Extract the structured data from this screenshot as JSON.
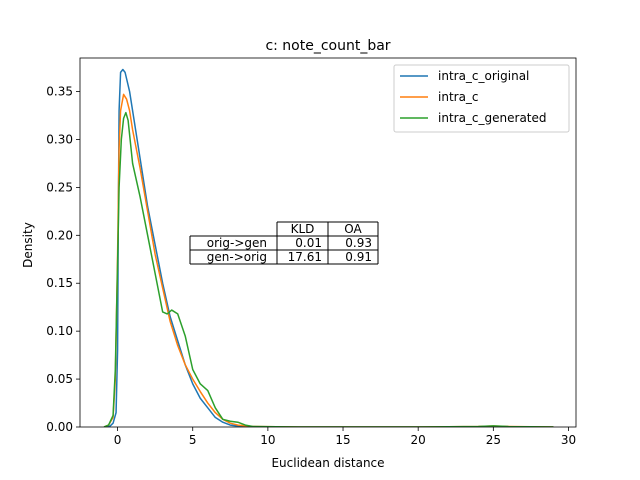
{
  "chart_data": {
    "type": "line",
    "title": "c: note_count_bar",
    "xlabel": "Euclidean distance",
    "ylabel": "Density",
    "xlim": [
      -2.5,
      30.5
    ],
    "ylim": [
      0.0,
      0.385
    ],
    "xticks": [
      0,
      5,
      10,
      15,
      20,
      25,
      30
    ],
    "xtick_labels": [
      "0",
      "5",
      "10",
      "15",
      "20",
      "25",
      "30"
    ],
    "yticks": [
      0.0,
      0.05,
      0.1,
      0.15,
      0.2,
      0.25,
      0.3,
      0.35
    ],
    "ytick_labels": [
      "0.00",
      "0.05",
      "0.10",
      "0.15",
      "0.20",
      "0.25",
      "0.30",
      "0.35"
    ],
    "grid": false,
    "legend_position": "top-right",
    "series": [
      {
        "name": "intra_c_original",
        "color": "#1f77b4",
        "points": [
          [
            -0.8,
            0
          ],
          [
            -0.5,
            0.001
          ],
          [
            -0.3,
            0.004
          ],
          [
            -0.1,
            0.015
          ],
          [
            0.0,
            0.08
          ],
          [
            0.05,
            0.22
          ],
          [
            0.1,
            0.33
          ],
          [
            0.2,
            0.37
          ],
          [
            0.35,
            0.373
          ],
          [
            0.5,
            0.37
          ],
          [
            0.8,
            0.35
          ],
          [
            1.0,
            0.33
          ],
          [
            1.5,
            0.28
          ],
          [
            2.0,
            0.23
          ],
          [
            2.5,
            0.19
          ],
          [
            3.0,
            0.15
          ],
          [
            3.5,
            0.115
          ],
          [
            4.0,
            0.09
          ],
          [
            4.5,
            0.065
          ],
          [
            5.0,
            0.045
          ],
          [
            5.5,
            0.03
          ],
          [
            6.0,
            0.02
          ],
          [
            6.5,
            0.01
          ],
          [
            7.0,
            0.005
          ],
          [
            7.5,
            0.002
          ],
          [
            8.0,
            0.001
          ],
          [
            9.0,
            0.0003
          ],
          [
            12.0,
            0.0
          ],
          [
            20.0,
            0.0
          ],
          [
            29.0,
            0.0
          ]
        ]
      },
      {
        "name": "intra_c",
        "color": "#ff7f0e",
        "points": [
          [
            -0.9,
            0
          ],
          [
            -0.6,
            0.002
          ],
          [
            -0.3,
            0.01
          ],
          [
            -0.15,
            0.05
          ],
          [
            0.0,
            0.18
          ],
          [
            0.1,
            0.29
          ],
          [
            0.2,
            0.33
          ],
          [
            0.4,
            0.347
          ],
          [
            0.6,
            0.342
          ],
          [
            0.8,
            0.33
          ],
          [
            1.0,
            0.31
          ],
          [
            1.5,
            0.27
          ],
          [
            2.0,
            0.225
          ],
          [
            2.5,
            0.18
          ],
          [
            3.0,
            0.145
          ],
          [
            3.5,
            0.11
          ],
          [
            4.0,
            0.085
          ],
          [
            4.5,
            0.065
          ],
          [
            5.0,
            0.05
          ],
          [
            5.5,
            0.037
          ],
          [
            6.0,
            0.025
          ],
          [
            6.5,
            0.015
          ],
          [
            7.0,
            0.008
          ],
          [
            7.5,
            0.004
          ],
          [
            8.0,
            0.002
          ],
          [
            9.0,
            0.0005
          ],
          [
            12.0,
            0.0
          ],
          [
            20.0,
            0.0
          ],
          [
            24.0,
            0.0005
          ],
          [
            25.0,
            0.001
          ],
          [
            26.0,
            0.0005
          ],
          [
            29.0,
            0.0
          ]
        ]
      },
      {
        "name": "intra_c_generated",
        "color": "#2ca02c",
        "points": [
          [
            -0.9,
            0
          ],
          [
            -0.6,
            0.002
          ],
          [
            -0.3,
            0.012
          ],
          [
            -0.15,
            0.06
          ],
          [
            0.0,
            0.17
          ],
          [
            0.1,
            0.25
          ],
          [
            0.25,
            0.3
          ],
          [
            0.4,
            0.322
          ],
          [
            0.55,
            0.328
          ],
          [
            0.7,
            0.32
          ],
          [
            0.9,
            0.29
          ],
          [
            1.0,
            0.275
          ],
          [
            1.5,
            0.24
          ],
          [
            2.0,
            0.2
          ],
          [
            2.5,
            0.16
          ],
          [
            3.0,
            0.12
          ],
          [
            3.3,
            0.118
          ],
          [
            3.6,
            0.122
          ],
          [
            4.0,
            0.118
          ],
          [
            4.5,
            0.095
          ],
          [
            5.0,
            0.06
          ],
          [
            5.5,
            0.045
          ],
          [
            6.0,
            0.038
          ],
          [
            6.5,
            0.02
          ],
          [
            7.0,
            0.008
          ],
          [
            7.5,
            0.006
          ],
          [
            8.0,
            0.005
          ],
          [
            8.5,
            0.002
          ],
          [
            9.0,
            0.0005
          ],
          [
            12.0,
            0.0
          ],
          [
            20.0,
            0.0
          ],
          [
            24.0,
            0.0005
          ],
          [
            25.0,
            0.0012
          ],
          [
            26.0,
            0.0005
          ],
          [
            29.0,
            0.0
          ]
        ]
      }
    ],
    "table": {
      "col_headers": [
        "KLD",
        "OA"
      ],
      "rows": [
        {
          "label": "orig->gen",
          "values": [
            "0.01",
            "0.93"
          ]
        },
        {
          "label": "gen->orig",
          "values": [
            "17.61",
            "0.91"
          ]
        }
      ]
    }
  }
}
